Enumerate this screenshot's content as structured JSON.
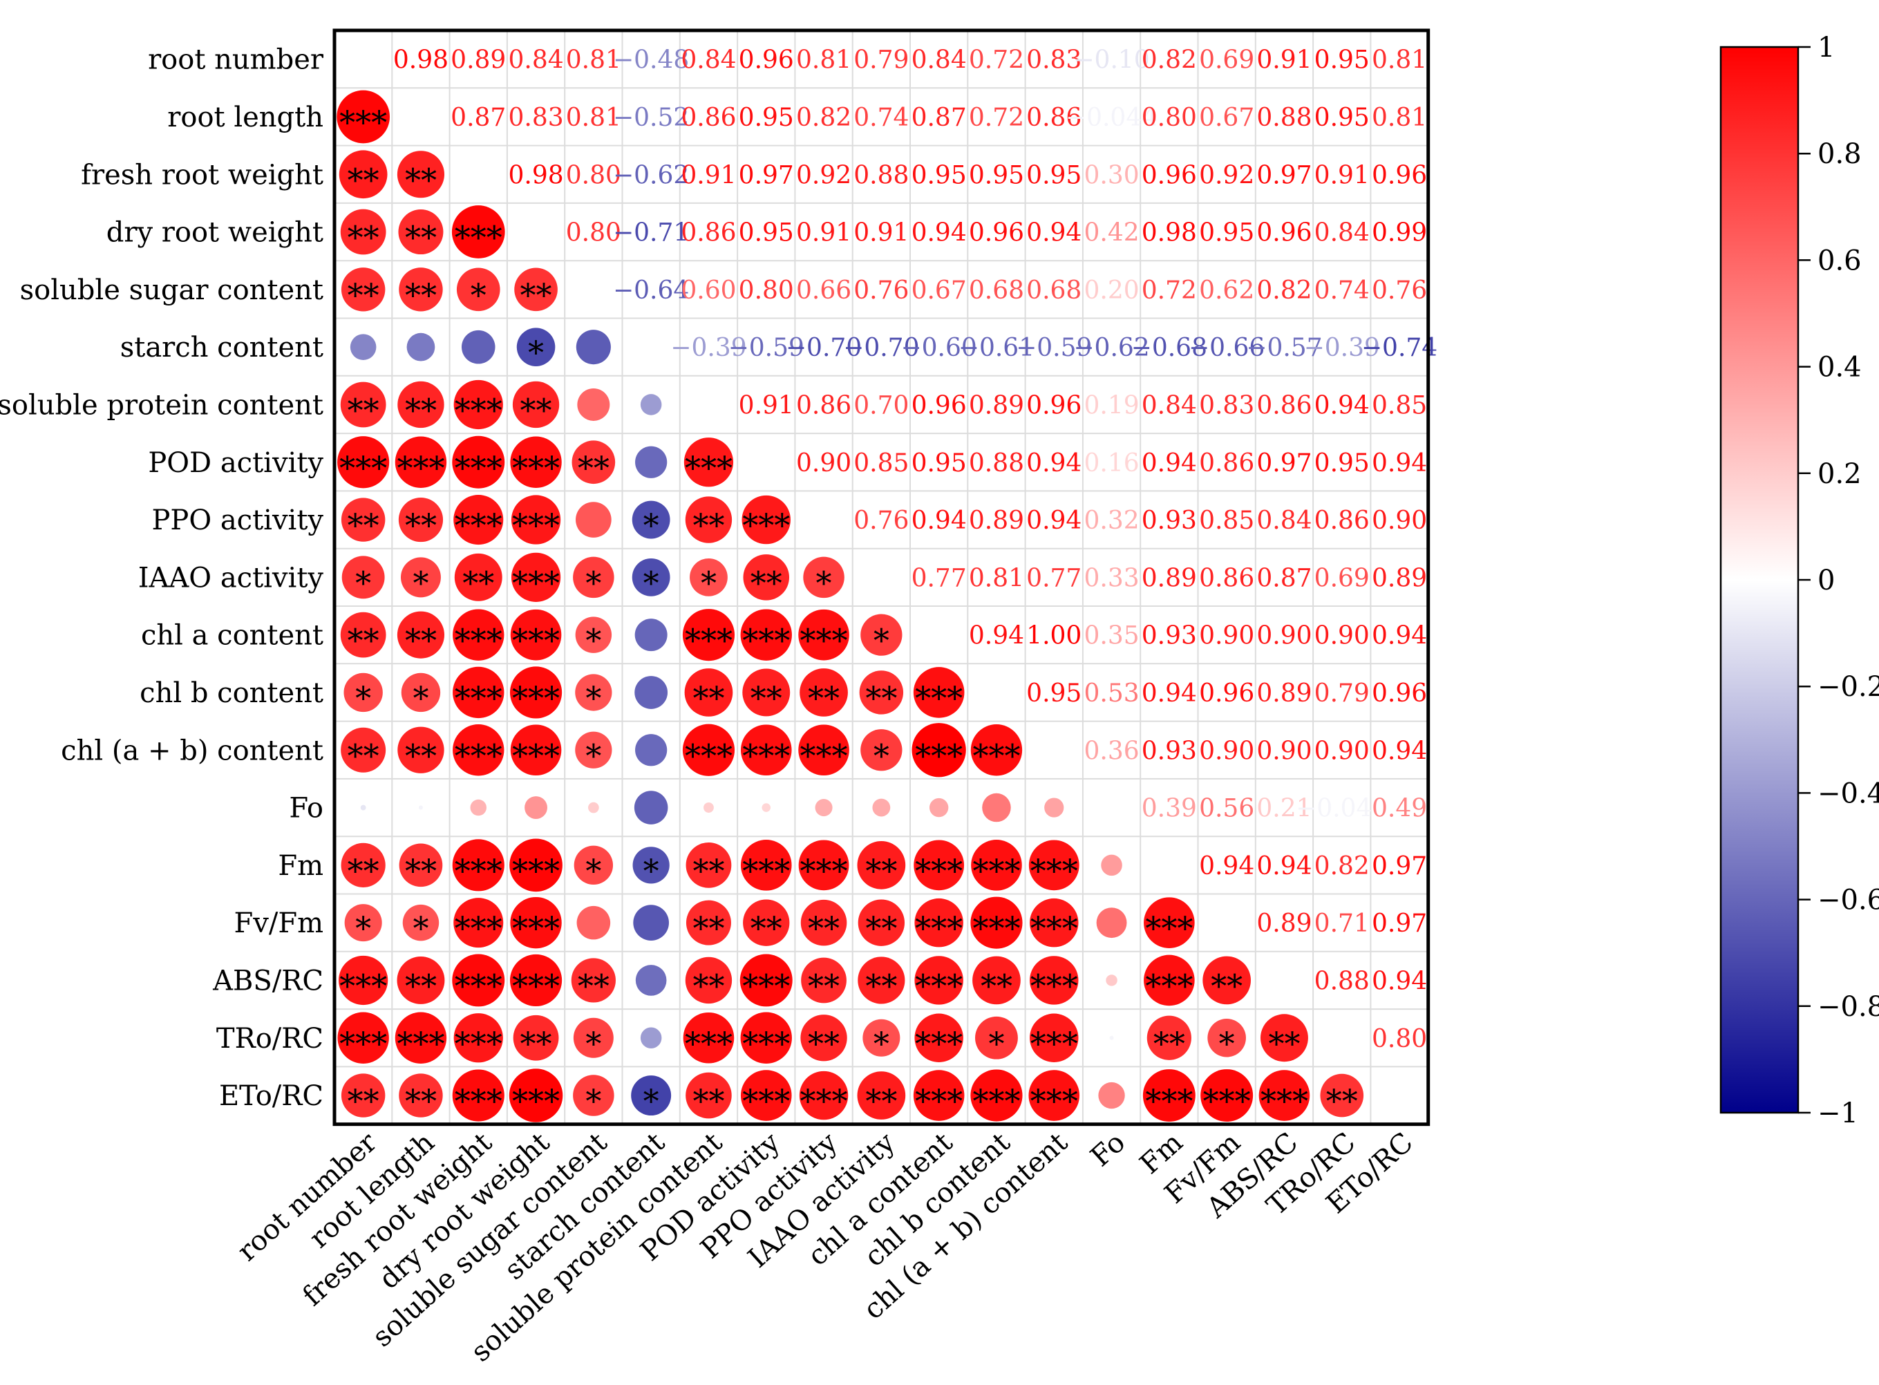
{
  "chart_data": {
    "type": "heatmap",
    "variables": [
      "root number",
      "root length",
      "fresh root weight",
      "dry root weight",
      "soluble sugar content",
      "starch content",
      "soluble protein content",
      "POD activity",
      "PPO activity",
      "IAAO activity",
      "chl a content",
      "chl b content",
      "chl (a + b) content",
      "Fo",
      "Fm",
      "Fv/Fm",
      "ABS/RC",
      "TRo/RC",
      "ETo/RC"
    ],
    "upper_labels": [
      [
        "",
        "0.98",
        "0.89",
        "0.84",
        "0.81",
        "−0.48",
        "0.84",
        "0.96",
        "0.81",
        "0.79",
        "0.84",
        "0.72",
        "0.83",
        "−0.10",
        "0.82",
        "0.69",
        "0.91",
        "0.95",
        "0.81"
      ],
      [
        "",
        "",
        "0.87",
        "0.83",
        "0.81",
        "−0.52",
        "0.86",
        "0.95",
        "0.82",
        "0.74",
        "0.87",
        "0.72",
        "0.86",
        "−0.044",
        "0.80",
        "0.67",
        "0.88",
        "0.95",
        "0.81"
      ],
      [
        "",
        "",
        "",
        "0.98",
        "0.80",
        "−0.62",
        "0.91",
        "0.97",
        "0.92",
        "0.88",
        "0.95",
        "0.95",
        "0.95",
        "0.30",
        "0.96",
        "0.92",
        "0.97",
        "0.91",
        "0.96"
      ],
      [
        "",
        "",
        "",
        "",
        "0.80",
        "−0.71",
        "0.86",
        "0.95",
        "0.91",
        "0.91",
        "0.94",
        "0.96",
        "0.94",
        "0.42",
        "0.98",
        "0.95",
        "0.96",
        "0.84",
        "0.99"
      ],
      [
        "",
        "",
        "",
        "",
        "",
        "−0.64",
        "0.60",
        "0.80",
        "0.66",
        "0.76",
        "0.67",
        "0.68",
        "0.68",
        "0.20",
        "0.72",
        "0.62",
        "0.82",
        "0.74",
        "0.76"
      ],
      [
        "",
        "",
        "",
        "",
        "",
        "",
        "−0.39",
        "−0.59",
        "−0.70",
        "−0.70",
        "−0.60",
        "−0.61",
        "−0.59",
        "−0.62",
        "−0.68",
        "−0.66",
        "−0.57",
        "−0.39",
        "−0.74"
      ],
      [
        "",
        "",
        "",
        "",
        "",
        "",
        "",
        "0.91",
        "0.86",
        "0.70",
        "0.96",
        "0.89",
        "0.96",
        "0.19",
        "0.84",
        "0.83",
        "0.86",
        "0.94",
        "0.85"
      ],
      [
        "",
        "",
        "",
        "",
        "",
        "",
        "",
        "",
        "0.90",
        "0.85",
        "0.95",
        "0.88",
        "0.94",
        "0.16",
        "0.94",
        "0.86",
        "0.97",
        "0.95",
        "0.94"
      ],
      [
        "",
        "",
        "",
        "",
        "",
        "",
        "",
        "",
        "",
        "0.76",
        "0.94",
        "0.89",
        "0.94",
        "0.32",
        "0.93",
        "0.85",
        "0.84",
        "0.86",
        "0.90"
      ],
      [
        "",
        "",
        "",
        "",
        "",
        "",
        "",
        "",
        "",
        "",
        "0.77",
        "0.81",
        "0.77",
        "0.33",
        "0.89",
        "0.86",
        "0.87",
        "0.69",
        "0.89"
      ],
      [
        "",
        "",
        "",
        "",
        "",
        "",
        "",
        "",
        "",
        "",
        "",
        "0.94",
        "1.00",
        "0.35",
        "0.93",
        "0.90",
        "0.90",
        "0.90",
        "0.94"
      ],
      [
        "",
        "",
        "",
        "",
        "",
        "",
        "",
        "",
        "",
        "",
        "",
        "",
        "0.95",
        "0.53",
        "0.94",
        "0.96",
        "0.89",
        "0.79",
        "0.96"
      ],
      [
        "",
        "",
        "",
        "",
        "",
        "",
        "",
        "",
        "",
        "",
        "",
        "",
        "",
        "0.36",
        "0.93",
        "0.90",
        "0.90",
        "0.90",
        "0.94"
      ],
      [
        "",
        "",
        "",
        "",
        "",
        "",
        "",
        "",
        "",
        "",
        "",
        "",
        "",
        "",
        "0.39",
        "0.56",
        "0.21",
        "−0.040",
        "0.49"
      ],
      [
        "",
        "",
        "",
        "",
        "",
        "",
        "",
        "",
        "",
        "",
        "",
        "",
        "",
        "",
        "",
        "0.94",
        "0.94",
        "0.82",
        "0.97"
      ],
      [
        "",
        "",
        "",
        "",
        "",
        "",
        "",
        "",
        "",
        "",
        "",
        "",
        "",
        "",
        "",
        "",
        "0.89",
        "0.71",
        "0.97"
      ],
      [
        "",
        "",
        "",
        "",
        "",
        "",
        "",
        "",
        "",
        "",
        "",
        "",
        "",
        "",
        "",
        "",
        "",
        "0.88",
        "0.94"
      ],
      [
        "",
        "",
        "",
        "",
        "",
        "",
        "",
        "",
        "",
        "",
        "",
        "",
        "",
        "",
        "",
        "",
        "",
        "",
        "0.80"
      ],
      [
        "",
        "",
        "",
        "",
        "",
        "",
        "",
        "",
        "",
        "",
        "",
        "",
        "",
        "",
        "",
        "",
        "",
        "",
        ""
      ]
    ],
    "significance": [
      [
        ""
      ],
      [
        "***"
      ],
      [
        "**",
        "**"
      ],
      [
        "**",
        "**",
        "***"
      ],
      [
        "**",
        "**",
        "*",
        "**"
      ],
      [
        "",
        "",
        "",
        "*",
        ""
      ],
      [
        "**",
        "**",
        "***",
        "**",
        "",
        ""
      ],
      [
        "***",
        "***",
        "***",
        "***",
        "**",
        "",
        "***"
      ],
      [
        "**",
        "**",
        "***",
        "***",
        "",
        "*",
        "**",
        "***"
      ],
      [
        "*",
        "*",
        "**",
        "***",
        "*",
        "*",
        "*",
        "**",
        "*"
      ],
      [
        "**",
        "**",
        "***",
        "***",
        "*",
        "",
        "***",
        "***",
        "***",
        "*"
      ],
      [
        "*",
        "*",
        "***",
        "***",
        "*",
        "",
        "**",
        "**",
        "**",
        "**",
        "***"
      ],
      [
        "**",
        "**",
        "***",
        "***",
        "*",
        "",
        "***",
        "***",
        "***",
        "*",
        "***",
        "***"
      ],
      [
        "",
        "",
        "",
        "",
        "",
        "",
        "",
        "",
        "",
        "",
        "",
        "",
        ""
      ],
      [
        "**",
        "**",
        "***",
        "***",
        "*",
        "*",
        "**",
        "***",
        "***",
        "**",
        "***",
        "***",
        "***",
        ""
      ],
      [
        "*",
        "*",
        "***",
        "***",
        "",
        "",
        "**",
        "**",
        "**",
        "**",
        "***",
        "***",
        "***",
        "",
        "***"
      ],
      [
        "***",
        "**",
        "***",
        "***",
        "**",
        "",
        "**",
        "***",
        "**",
        "**",
        "***",
        "**",
        "***",
        "",
        "***",
        "**"
      ],
      [
        "***",
        "***",
        "***",
        "**",
        "*",
        "",
        "***",
        "***",
        "**",
        "*",
        "***",
        "*",
        "***",
        "",
        "**",
        "*",
        "**"
      ],
      [
        "**",
        "**",
        "***",
        "***",
        "*",
        "*",
        "**",
        "***",
        "***",
        "**",
        "***",
        "***",
        "***",
        "",
        "***",
        "***",
        "***",
        "**"
      ]
    ],
    "colorbar": {
      "min": -1,
      "max": 1,
      "ticks": [
        -1,
        -0.8,
        -0.6,
        -0.4,
        -0.2,
        0,
        0.2,
        0.4,
        0.6,
        0.8,
        1
      ],
      "tick_labels": [
        "−1",
        "−0.8",
        "−0.6",
        "−0.4",
        "−0.2",
        "0",
        "0.2",
        "0.4",
        "0.6",
        "0.8",
        "1"
      ],
      "colors": {
        "negative": "#00008B",
        "zero": "#FFFFFF",
        "positive": "#FF0000"
      }
    }
  }
}
